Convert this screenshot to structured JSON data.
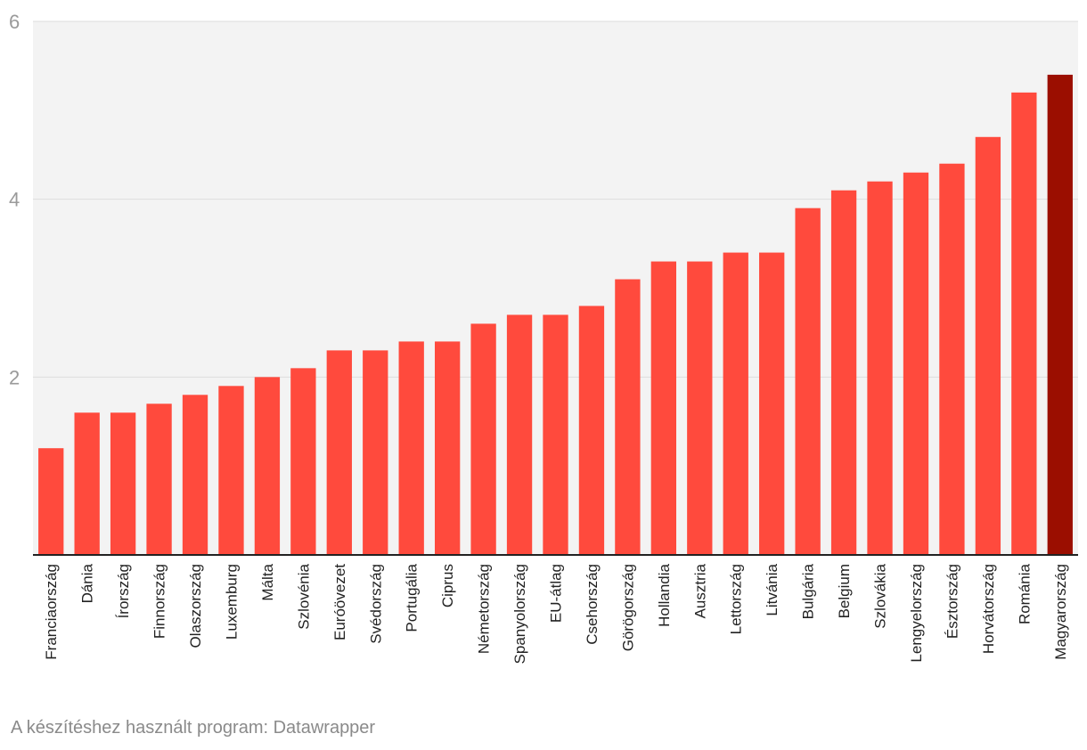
{
  "chart_data": {
    "type": "bar",
    "categories": [
      "Franciaország",
      "Dánia",
      "Írország",
      "Finnország",
      "Olaszország",
      "Luxemburg",
      "Málta",
      "Szlovénia",
      "Euróövezet",
      "Svédország",
      "Portugália",
      "Ciprus",
      "Németország",
      "Spanyolország",
      "EU-átlag",
      "Csehország",
      "Görögország",
      "Hollandia",
      "Ausztria",
      "Lettország",
      "Litvánia",
      "Bulgária",
      "Belgium",
      "Szlovákia",
      "Lengyelország",
      "Észtország",
      "Horvátország",
      "Románia",
      "Magyarország"
    ],
    "values": [
      1.2,
      1.6,
      1.6,
      1.7,
      1.8,
      1.9,
      2.0,
      2.1,
      2.3,
      2.3,
      2.4,
      2.4,
      2.6,
      2.7,
      2.7,
      2.8,
      3.1,
      3.3,
      3.3,
      3.4,
      3.4,
      3.9,
      4.1,
      4.2,
      4.3,
      4.4,
      4.7,
      5.2,
      5.4
    ],
    "highlight": "Magyarország",
    "colors": {
      "bar": "#ff4a3d",
      "highlight": "#9b0e00",
      "plot_bg": "#f3f3f3",
      "grid": "#dddddd",
      "axis": "#222222",
      "tick_text": "#9a9a9a",
      "label_text": "#222222"
    },
    "ylim": [
      0,
      6
    ],
    "yticks": [
      2,
      4,
      6
    ],
    "title": "",
    "xlabel": "",
    "ylabel": "",
    "grid": true,
    "legend": "none"
  },
  "footer": {
    "credit": "A készítéshez használt program: Datawrapper"
  }
}
